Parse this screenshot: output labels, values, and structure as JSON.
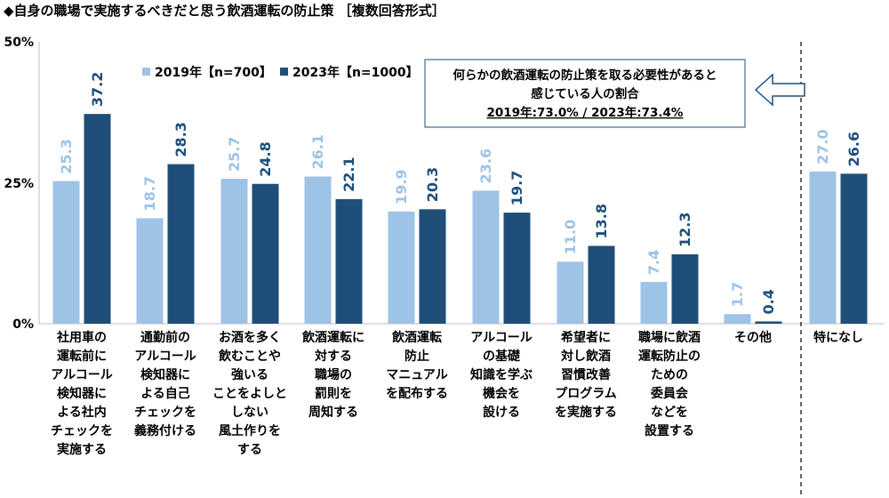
{
  "chart_data": {
    "type": "bar",
    "title": "◆自身の職場で実施するべきだと思う飲酒運転の防止策 ［複数回答形式］",
    "yticks": [
      "0%",
      "25%",
      "50%"
    ],
    "ylim": [
      0,
      50
    ],
    "grid": false,
    "legend_position": "top-left",
    "categories": [
      [
        "社用車の",
        "運転前に",
        "アルコール",
        "検知器に",
        "よる社内",
        "チェックを",
        "実施する"
      ],
      [
        "通勤前の",
        "アルコール",
        "検知器に",
        "よる自己",
        "チェックを",
        "義務付ける"
      ],
      [
        "お酒を多く",
        "飲むことや",
        "強いる",
        "ことをよしと",
        "しない",
        "風土作りを",
        "する"
      ],
      [
        "飲酒運転に",
        "対する",
        "職場の",
        "罰則を",
        "周知する"
      ],
      [
        "飲酒運転",
        "防止",
        "マニュアル",
        "を配布する"
      ],
      [
        "アルコール",
        "の基礎",
        "知識を学ぶ",
        "機会を",
        "設ける"
      ],
      [
        "希望者に",
        "対し飲酒",
        "習慣改善",
        "プログラム",
        "を実施する"
      ],
      [
        "職場に飲酒",
        "運転防止の",
        "ための",
        "委員会",
        "などを",
        "設置する"
      ],
      [
        "その他"
      ],
      [
        "特になし"
      ]
    ],
    "series": [
      {
        "name": "2019年【n=700】",
        "color": "#9DC3E6",
        "values": [
          25.3,
          18.7,
          25.7,
          26.1,
          19.9,
          23.6,
          11.0,
          7.4,
          1.7,
          27.0
        ],
        "labels": [
          "25.3",
          "18.7",
          "25.7",
          "26.1",
          "19.9",
          "23.6",
          "11.0",
          "7.4",
          "1.7",
          "27.0"
        ]
      },
      {
        "name": "2023年【n=1000】",
        "color": "#1F4E79",
        "values": [
          37.2,
          28.3,
          24.8,
          22.1,
          20.3,
          19.7,
          13.8,
          12.3,
          0.4,
          26.6
        ],
        "labels": [
          "37.2",
          "28.3",
          "24.8",
          "22.1",
          "20.3",
          "19.7",
          "13.8",
          "12.3",
          "0.4",
          "26.6"
        ]
      }
    ]
  },
  "note": {
    "line1": "何らかの飲酒運転の防止策を取る必要性があると",
    "line2": "感じている人の割合",
    "line3": "2019年:73.0% / 2023年:73.4%"
  }
}
